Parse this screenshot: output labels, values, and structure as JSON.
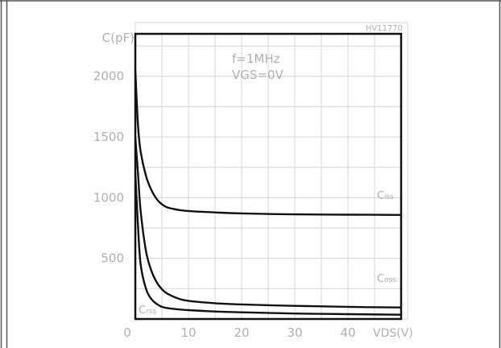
{
  "chart_data": {
    "type": "line",
    "ref_code": "HV11770",
    "conditions": [
      "f=1MHz",
      "VGS=0V"
    ],
    "y_axis_label": "C(pF)",
    "x_axis_label": "VDS(V)",
    "x_ticks": [
      {
        "v": 0,
        "label": "0"
      },
      {
        "v": 10,
        "label": "10"
      },
      {
        "v": 20,
        "label": "20"
      },
      {
        "v": 30,
        "label": "30"
      },
      {
        "v": 40,
        "label": "40"
      }
    ],
    "y_ticks": [
      {
        "v": 500,
        "label": "500"
      },
      {
        "v": 1000,
        "label": "1000"
      },
      {
        "v": 1500,
        "label": "1500"
      },
      {
        "v": 2000,
        "label": "2000"
      }
    ],
    "xlim": [
      0,
      50
    ],
    "ylim": [
      0,
      2350
    ],
    "grid": true,
    "series": [
      {
        "name": "Ciss",
        "label_main": "C",
        "label_sub": "iss",
        "x": [
          0,
          0.5,
          1,
          2,
          3,
          4,
          5,
          6,
          8,
          10,
          15,
          20,
          30,
          40,
          50
        ],
        "y": [
          2050,
          1600,
          1380,
          1180,
          1065,
          990,
          945,
          920,
          900,
          890,
          878,
          870,
          862,
          860,
          858
        ]
      },
      {
        "name": "Coss",
        "label_main": "C",
        "label_sub": "oss",
        "x": [
          0,
          0.5,
          1,
          2,
          3,
          4,
          5,
          6,
          8,
          10,
          15,
          20,
          30,
          40,
          50
        ],
        "y": [
          1500,
          1200,
          890,
          560,
          400,
          305,
          245,
          210,
          170,
          150,
          130,
          120,
          108,
          100,
          95
        ]
      },
      {
        "name": "Crss",
        "label_main": "C",
        "label_sub": "rss",
        "x": [
          0,
          0.5,
          1,
          2,
          3,
          4,
          5,
          6,
          8,
          10,
          15,
          20,
          30,
          40,
          50
        ],
        "y": [
          1200,
          770,
          450,
          250,
          165,
          125,
          100,
          90,
          80,
          73,
          62,
          55,
          45,
          40,
          35
        ]
      }
    ]
  }
}
